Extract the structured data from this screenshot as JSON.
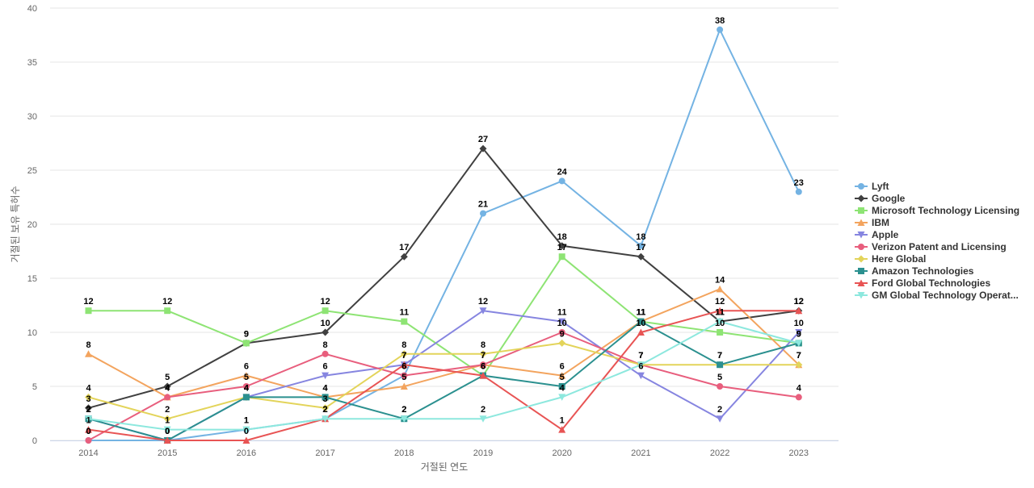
{
  "chart_data": {
    "type": "line",
    "xlabel": "거절된 연도",
    "ylabel": "거절된 보유 특허수",
    "ylim": [
      0,
      40
    ],
    "yticks": [
      0,
      5,
      10,
      15,
      20,
      25,
      30,
      35,
      40
    ],
    "x": [
      "2014",
      "2015",
      "2016",
      "2017",
      "2018",
      "2019",
      "2020",
      "2021",
      "2022",
      "2023"
    ],
    "grid": true,
    "legend_position": "right",
    "series": [
      {
        "name": "Lyft",
        "color": "#74b3e3",
        "marker": "circle",
        "values": [
          0,
          0,
          1,
          2,
          6,
          21,
          24,
          18,
          38,
          23
        ]
      },
      {
        "name": "Google",
        "color": "#404040",
        "marker": "diamond",
        "values": [
          3,
          5,
          9,
          10,
          17,
          27,
          18,
          17,
          11,
          12
        ]
      },
      {
        "name": "Microsoft Technology Licensing",
        "color": "#8ee474",
        "marker": "square",
        "values": [
          12,
          12,
          9,
          12,
          11,
          6,
          17,
          11,
          10,
          9
        ]
      },
      {
        "name": "IBM",
        "color": "#f3a45e",
        "marker": "triangle",
        "values": [
          8,
          4,
          6,
          4,
          5,
          7,
          6,
          11,
          14,
          7
        ]
      },
      {
        "name": "Apple",
        "color": "#8685e0",
        "marker": "triangle-down",
        "values": [
          2,
          0,
          4,
          6,
          7,
          12,
          11,
          6,
          2,
          10
        ]
      },
      {
        "name": "Verizon Patent and Licensing",
        "color": "#e85e7d",
        "marker": "circle",
        "values": [
          0,
          4,
          5,
          8,
          6,
          7,
          10,
          7,
          5,
          4
        ]
      },
      {
        "name": "Here Global",
        "color": "#e3d45a",
        "marker": "diamond",
        "values": [
          4,
          2,
          4,
          3,
          8,
          8,
          9,
          7,
          7,
          7
        ]
      },
      {
        "name": "Amazon Technologies",
        "color": "#2b908f",
        "marker": "square",
        "values": [
          2,
          0,
          4,
          4,
          2,
          6,
          5,
          11,
          7,
          9
        ]
      },
      {
        "name": "Ford Global Technologies",
        "color": "#e85454",
        "marker": "triangle",
        "values": [
          1,
          0,
          0,
          2,
          7,
          6,
          1,
          10,
          12,
          12
        ]
      },
      {
        "name": "GM Global Technology Operat...",
        "color": "#8de8de",
        "marker": "triangle-down",
        "values": [
          2,
          1,
          1,
          2,
          2,
          2,
          4,
          7,
          11,
          9
        ]
      }
    ]
  }
}
